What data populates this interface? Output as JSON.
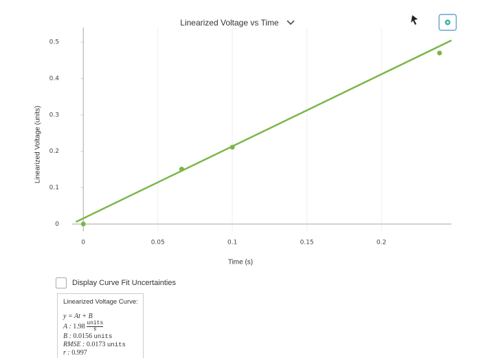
{
  "chart_data": {
    "type": "scatter",
    "title": "Linearized Voltage vs Time",
    "x_label": "Time (s)",
    "y_label": "Linearized Voltage (units)",
    "x": [
      0,
      0.066,
      0.1,
      0.239
    ],
    "values": [
      0.0,
      0.151,
      0.211,
      0.47
    ],
    "color": "#7ab648",
    "xlim": [
      -0.0075,
      0.247
    ],
    "ylim": [
      -0.02,
      0.54
    ],
    "xticks": [
      0,
      0.05,
      0.1,
      0.15,
      0.2
    ],
    "yticks": [
      0,
      0.1,
      0.2,
      0.3,
      0.4,
      0.5
    ],
    "grid": true,
    "fit": {
      "toggle_label": "Display Curve Fit Uncertainties",
      "title": "Linearized Voltage Curve:",
      "equation": "y = At + B",
      "params": [
        {
          "name": "A :",
          "value": 1.98,
          "unit": "units",
          "per": "s"
        },
        {
          "name": "B :",
          "value": 0.0156,
          "unit": "units"
        },
        {
          "name": "RMSE :",
          "value": 0.0173,
          "unit": "units"
        },
        {
          "name": "r :",
          "value": 0.997
        }
      ]
    }
  }
}
